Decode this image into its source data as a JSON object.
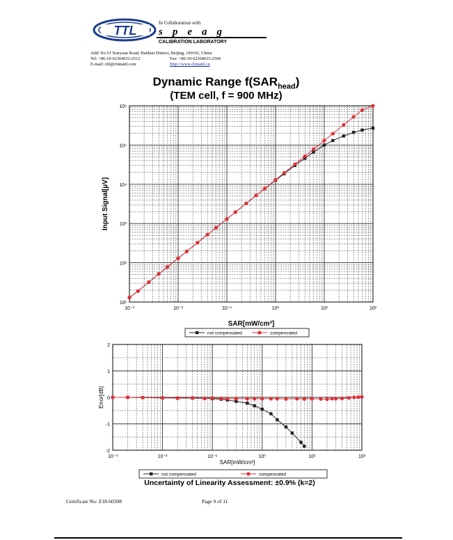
{
  "header": {
    "logo_text": "TTL",
    "collab_text": "In Collaboration with",
    "speag_text": "speag",
    "calibration_text": "CALIBRATION LABORATORY",
    "address": "Add: No.51 Xueyuan Road, Haidian District, Beijing, 100191, China",
    "tel": "Tel: +86-10-62304633-2512",
    "fax": "Fax: +86-10-62304633-2504",
    "email": "E-mail: cttl@chinattl.com",
    "website": "Http://www.chinattl.cn"
  },
  "title_main": "Dynamic Range f(SAR",
  "title_sub": "head",
  "title_close": ")",
  "title_line2": "(TEM cell, f = 900 MHz)",
  "uncertainty": "Uncertainty of Linearity Assessment: ±0.9% (k=2)",
  "footer": {
    "certificate": "Certificate No: Z18-60398",
    "page": "Page 9 of 11"
  },
  "colors": {
    "not_compensated": "#222222",
    "compensated": "#e0303a"
  },
  "chart_data": [
    {
      "type": "line",
      "title": "",
      "xlabel": "SAR[mW/cm³]",
      "ylabel": "Input Signal[µV]",
      "xscale": "log",
      "yscale": "log",
      "xlim": [
        0.001,
        100
      ],
      "ylim": [
        10,
        1000000
      ],
      "xticks": [
        "10⁻³",
        "10⁻²",
        "10⁻¹",
        "10⁰",
        "10¹",
        "10²"
      ],
      "yticks": [
        "10¹",
        "10²",
        "10³",
        "10⁴",
        "10⁵",
        "10⁶"
      ],
      "grid": true,
      "legend": "bottom",
      "series": [
        {
          "name": "not compensated",
          "points": [
            [
              0.001,
              13
            ],
            [
              0.0015,
              19
            ],
            [
              0.0025,
              32
            ],
            [
              0.004,
              52
            ],
            [
              0.006,
              78
            ],
            [
              0.01,
              130
            ],
            [
              0.015,
              195
            ],
            [
              0.025,
              325
            ],
            [
              0.04,
              520
            ],
            [
              0.06,
              780
            ],
            [
              0.1,
              1300
            ],
            [
              0.15,
              1950
            ],
            [
              0.25,
              3250
            ],
            [
              0.4,
              5200
            ],
            [
              0.6,
              7700
            ],
            [
              1,
              12600
            ],
            [
              1.5,
              18500
            ],
            [
              2.5,
              30000
            ],
            [
              4,
              46000
            ],
            [
              6,
              66000
            ],
            [
              10,
              100000
            ],
            [
              15,
              130000
            ],
            [
              25,
              170000
            ],
            [
              40,
              210000
            ],
            [
              60,
              240000
            ],
            [
              100,
              270000
            ]
          ]
        },
        {
          "name": "compensated",
          "points": [
            [
              0.001,
              13
            ],
            [
              0.0015,
              19
            ],
            [
              0.0025,
              32
            ],
            [
              0.004,
              52
            ],
            [
              0.006,
              78
            ],
            [
              0.01,
              130
            ],
            [
              0.015,
              195
            ],
            [
              0.025,
              325
            ],
            [
              0.04,
              520
            ],
            [
              0.06,
              780
            ],
            [
              0.1,
              1300
            ],
            [
              0.15,
              1950
            ],
            [
              0.25,
              3250
            ],
            [
              0.4,
              5200
            ],
            [
              0.6,
              7800
            ],
            [
              1,
              13000
            ],
            [
              1.5,
              19500
            ],
            [
              2.5,
              32500
            ],
            [
              4,
              52000
            ],
            [
              6,
              78000
            ],
            [
              10,
              130000
            ],
            [
              15,
              195000
            ],
            [
              25,
              325000
            ],
            [
              40,
              520000
            ],
            [
              60,
              780000
            ],
            [
              100,
              1000000
            ]
          ]
        }
      ]
    },
    {
      "type": "line",
      "title": "",
      "xlabel": "SAR[mW/cm³]",
      "ylabel": "Error[dB]",
      "xscale": "log",
      "xlim": [
        0.001,
        100
      ],
      "ylim": [
        -2,
        2
      ],
      "xticks": [
        "10⁻³",
        "10⁻²",
        "10⁻¹",
        "10⁰",
        "10¹",
        "10²"
      ],
      "yticks": [
        "-2",
        "-1",
        "0",
        "1",
        "2"
      ],
      "grid": true,
      "legend": "bottom",
      "series": [
        {
          "name": "not compensated",
          "points": [
            [
              0.001,
              0.0
            ],
            [
              0.002,
              0.0
            ],
            [
              0.004,
              -0.01
            ],
            [
              0.01,
              -0.02
            ],
            [
              0.02,
              -0.03
            ],
            [
              0.04,
              -0.03
            ],
            [
              0.07,
              -0.04
            ],
            [
              0.1,
              -0.05
            ],
            [
              0.15,
              -0.07
            ],
            [
              0.2,
              -0.1
            ],
            [
              0.3,
              -0.15
            ],
            [
              0.5,
              -0.22
            ],
            [
              0.7,
              -0.32
            ],
            [
              1,
              -0.45
            ],
            [
              1.5,
              -0.62
            ],
            [
              2,
              -0.85
            ],
            [
              3,
              -1.12
            ],
            [
              4,
              -1.35
            ],
            [
              6,
              -1.7
            ],
            [
              7,
              -1.85
            ]
          ]
        },
        {
          "name": "compensated",
          "points": [
            [
              0.001,
              0.0
            ],
            [
              0.002,
              0.0
            ],
            [
              0.004,
              -0.01
            ],
            [
              0.01,
              -0.02
            ],
            [
              0.02,
              -0.03
            ],
            [
              0.04,
              -0.02
            ],
            [
              0.07,
              -0.04
            ],
            [
              0.1,
              -0.03
            ],
            [
              0.15,
              -0.04
            ],
            [
              0.2,
              -0.05
            ],
            [
              0.3,
              -0.05
            ],
            [
              0.5,
              -0.05
            ],
            [
              0.7,
              -0.05
            ],
            [
              1,
              -0.05
            ],
            [
              1.5,
              -0.05
            ],
            [
              2,
              -0.05
            ],
            [
              3,
              -0.06
            ],
            [
              5,
              -0.05
            ],
            [
              7,
              -0.06
            ],
            [
              10,
              -0.05
            ],
            [
              15,
              -0.06
            ],
            [
              20,
              -0.07
            ],
            [
              25,
              -0.05
            ],
            [
              30,
              -0.05
            ],
            [
              40,
              -0.04
            ],
            [
              55,
              -0.02
            ],
            [
              70,
              0.0
            ],
            [
              85,
              0.01
            ],
            [
              100,
              0.02
            ]
          ]
        }
      ]
    }
  ]
}
